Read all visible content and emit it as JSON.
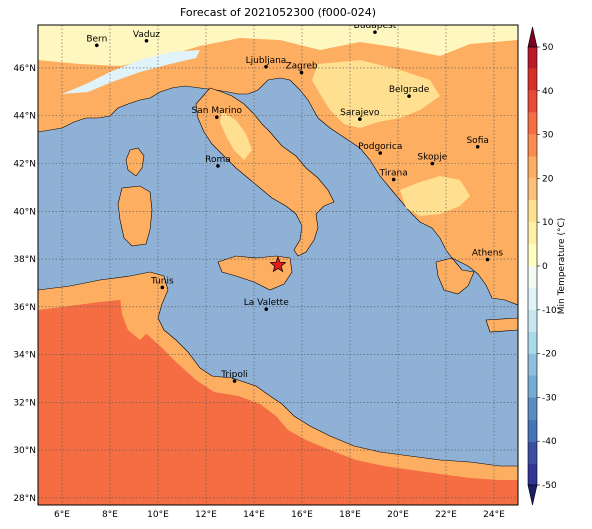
{
  "title": "Forecast of 2021052300 (f000-024)",
  "map": {
    "lon_range": [
      5,
      25
    ],
    "lat_range": [
      27.7,
      47.8
    ],
    "lon_ticks": [
      {
        "lon": 6,
        "label": "6°E"
      },
      {
        "lon": 8,
        "label": "8°E"
      },
      {
        "lon": 10,
        "label": "10°E"
      },
      {
        "lon": 12,
        "label": "12°E"
      },
      {
        "lon": 14,
        "label": "14°E"
      },
      {
        "lon": 16,
        "label": "16°E"
      },
      {
        "lon": 18,
        "label": "18°E"
      },
      {
        "lon": 20,
        "label": "20°E"
      },
      {
        "lon": 22,
        "label": "22°E"
      },
      {
        "lon": 24,
        "label": "24°E"
      }
    ],
    "lat_ticks": [
      {
        "lat": 28,
        "label": "28°N"
      },
      {
        "lat": 30,
        "label": "30°N"
      },
      {
        "lat": 32,
        "label": "32°N"
      },
      {
        "lat": 34,
        "label": "34°N"
      },
      {
        "lat": 36,
        "label": "36°N"
      },
      {
        "lat": 38,
        "label": "38°N"
      },
      {
        "lat": 40,
        "label": "40°N"
      },
      {
        "lat": 42,
        "label": "42°N"
      },
      {
        "lat": 44,
        "label": "44°N"
      },
      {
        "lat": 46,
        "label": "46°N"
      }
    ],
    "gridlines": true,
    "sea_color": "#8fb1d6",
    "star": {
      "lon": 15.0,
      "lat": 37.75,
      "color": "#e41a1c"
    },
    "cities": [
      {
        "name": "Bern",
        "lon": 7.45,
        "lat": 46.95
      },
      {
        "name": "Vaduz",
        "lon": 9.52,
        "lat": 47.14
      },
      {
        "name": "Budapest",
        "lon": 19.04,
        "lat": 47.5
      },
      {
        "name": "Ljubljana",
        "lon": 14.5,
        "lat": 46.05
      },
      {
        "name": "Zagreb",
        "lon": 15.98,
        "lat": 45.81
      },
      {
        "name": "Belgrade",
        "lon": 20.46,
        "lat": 44.82
      },
      {
        "name": "Sarajevo",
        "lon": 18.41,
        "lat": 43.86
      },
      {
        "name": "San Marino",
        "lon": 12.45,
        "lat": 43.94
      },
      {
        "name": "Podgorica",
        "lon": 19.26,
        "lat": 42.44
      },
      {
        "name": "Sofia",
        "lon": 23.32,
        "lat": 42.7
      },
      {
        "name": "Skopje",
        "lon": 21.43,
        "lat": 42.0
      },
      {
        "name": "Roma",
        "lon": 12.5,
        "lat": 41.9
      },
      {
        "name": "Tirana",
        "lon": 19.82,
        "lat": 41.33
      },
      {
        "name": "Athens",
        "lon": 23.73,
        "lat": 37.98
      },
      {
        "name": "Tunis",
        "lon": 10.18,
        "lat": 36.81
      },
      {
        "name": "La Valette",
        "lon": 14.51,
        "lat": 35.9
      },
      {
        "name": "Tripoli",
        "lon": 13.19,
        "lat": 32.89
      }
    ]
  },
  "colorbar": {
    "label": "Min Temperature (°C)",
    "range": [
      -50,
      50
    ],
    "levels": [
      -50,
      -45,
      -40,
      -35,
      -30,
      -25,
      -20,
      -15,
      -10,
      -5,
      0,
      5,
      10,
      15,
      20,
      25,
      30,
      35,
      40,
      45,
      50
    ],
    "colors": [
      "#313695",
      "#3a4fa0",
      "#4575b4",
      "#5b8cc0",
      "#74add1",
      "#8fbfdc",
      "#abd9e9",
      "#c6e6f0",
      "#e0f3f8",
      "#f2faf2",
      "#ffffbf",
      "#fff0a8",
      "#fee090",
      "#fdc07a",
      "#fdae61",
      "#f88c51",
      "#f46d43",
      "#e54c35",
      "#d73027",
      "#bb1a28",
      "#a50026"
    ],
    "extend_low_color": "#1b1f6b",
    "extend_high_color": "#7f0020",
    "tick_labels": [
      "-50",
      "-40",
      "-30",
      "-20",
      "-10",
      "0",
      "10",
      "20",
      "30",
      "40",
      "50"
    ]
  }
}
